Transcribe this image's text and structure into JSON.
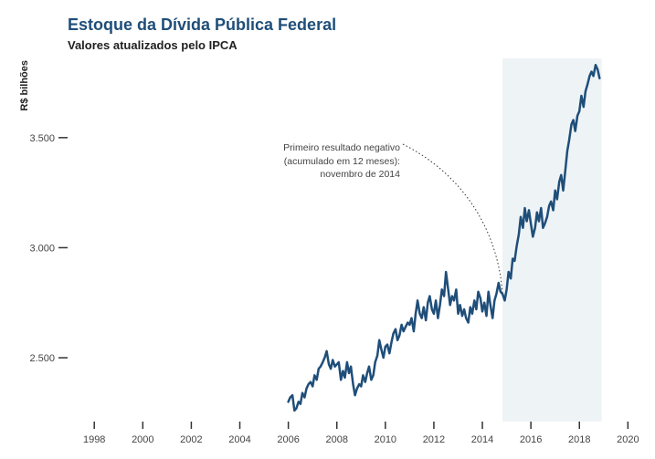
{
  "header": {
    "title": "Estoque da Dívida Pública Federal",
    "subtitle": "Valores atualizados pelo IPCA"
  },
  "colors": {
    "line": "#1f4e79",
    "title": "#1f4e79",
    "highlight": "#eef3f6",
    "ticks": "#333333"
  },
  "chart_data": {
    "type": "line",
    "title": "Estoque da Dívida Pública Federal",
    "subtitle": "Valores atualizados pelo IPCA",
    "ylabel": "R$ bilhões",
    "xlabel": "",
    "xlim": [
      1996.9,
      2020.1
    ],
    "ylim": [
      2210,
      3860
    ],
    "x_ticks": [
      1998,
      2000,
      2002,
      2004,
      2006,
      2008,
      2010,
      2012,
      2014,
      2016,
      2018,
      2020
    ],
    "x_tick_labels": [
      "1998",
      "2000",
      "2002",
      "2004",
      "2006",
      "2008",
      "2010",
      "2012",
      "2014",
      "2016",
      "2018",
      "2020"
    ],
    "y_ticks": [
      2500,
      3000,
      3500
    ],
    "y_tick_labels": [
      "2.500",
      "3.000",
      "3.500"
    ],
    "grid": false,
    "shaded_region": {
      "x_start": 2014.83,
      "x_end": 2018.92
    },
    "annotation": {
      "lines": [
        "Primeiro resultado negativo",
        "(acumulado em 12 meses):",
        "novembro de 2014"
      ],
      "target": {
        "x": 2014.83,
        "y": 2790
      }
    },
    "series": [
      {
        "name": "",
        "x": [
          2006.0,
          2006.08,
          2006.17,
          2006.25,
          2006.33,
          2006.42,
          2006.5,
          2006.58,
          2006.67,
          2006.75,
          2006.83,
          2006.92,
          2007.0,
          2007.08,
          2007.17,
          2007.25,
          2007.33,
          2007.42,
          2007.5,
          2007.58,
          2007.67,
          2007.75,
          2007.83,
          2007.92,
          2008.0,
          2008.08,
          2008.17,
          2008.25,
          2008.33,
          2008.42,
          2008.5,
          2008.58,
          2008.67,
          2008.75,
          2008.83,
          2008.92,
          2009.0,
          2009.08,
          2009.17,
          2009.25,
          2009.33,
          2009.42,
          2009.5,
          2009.58,
          2009.67,
          2009.75,
          2009.83,
          2009.92,
          2010.0,
          2010.08,
          2010.17,
          2010.25,
          2010.33,
          2010.42,
          2010.5,
          2010.58,
          2010.67,
          2010.75,
          2010.83,
          2010.92,
          2011.0,
          2011.08,
          2011.17,
          2011.25,
          2011.33,
          2011.42,
          2011.5,
          2011.58,
          2011.67,
          2011.75,
          2011.83,
          2011.92,
          2012.0,
          2012.08,
          2012.17,
          2012.25,
          2012.33,
          2012.42,
          2012.5,
          2012.58,
          2012.67,
          2012.75,
          2012.83,
          2012.92,
          2013.0,
          2013.08,
          2013.17,
          2013.25,
          2013.33,
          2013.42,
          2013.5,
          2013.58,
          2013.67,
          2013.75,
          2013.83,
          2013.92,
          2014.0,
          2014.08,
          2014.17,
          2014.25,
          2014.33,
          2014.42,
          2014.5,
          2014.58,
          2014.67,
          2014.75,
          2014.83,
          2014.92,
          2015.0,
          2015.08,
          2015.17,
          2015.25,
          2015.33,
          2015.42,
          2015.5,
          2015.58,
          2015.67,
          2015.75,
          2015.83,
          2015.92,
          2016.0,
          2016.08,
          2016.17,
          2016.25,
          2016.33,
          2016.42,
          2016.5,
          2016.58,
          2016.67,
          2016.75,
          2016.83,
          2016.92,
          2017.0,
          2017.08,
          2017.17,
          2017.25,
          2017.33,
          2017.42,
          2017.5,
          2017.58,
          2017.67,
          2017.75,
          2017.83,
          2017.92,
          2018.0,
          2018.08,
          2018.17,
          2018.25,
          2018.33,
          2018.42,
          2018.5,
          2018.58,
          2018.67,
          2018.75,
          2018.83
        ],
        "values": [
          2300,
          2320,
          2330,
          2260,
          2270,
          2300,
          2290,
          2340,
          2320,
          2360,
          2380,
          2390,
          2370,
          2420,
          2400,
          2450,
          2460,
          2480,
          2500,
          2530,
          2470,
          2450,
          2490,
          2460,
          2470,
          2480,
          2400,
          2440,
          2410,
          2480,
          2430,
          2460,
          2380,
          2330,
          2360,
          2380,
          2370,
          2420,
          2390,
          2430,
          2460,
          2400,
          2420,
          2480,
          2510,
          2580,
          2540,
          2500,
          2550,
          2560,
          2520,
          2570,
          2610,
          2630,
          2580,
          2600,
          2650,
          2620,
          2640,
          2660,
          2650,
          2680,
          2620,
          2700,
          2760,
          2700,
          2680,
          2730,
          2670,
          2750,
          2780,
          2720,
          2700,
          2760,
          2680,
          2740,
          2810,
          2780,
          2890,
          2820,
          2740,
          2780,
          2760,
          2810,
          2700,
          2740,
          2690,
          2720,
          2680,
          2660,
          2730,
          2700,
          2760,
          2720,
          2800,
          2770,
          2710,
          2750,
          2690,
          2800,
          2740,
          2680,
          2760,
          2790,
          2840,
          2800,
          2790,
          2760,
          2810,
          2890,
          2860,
          2950,
          2940,
          3010,
          3060,
          3140,
          3090,
          3180,
          3120,
          3170,
          3110,
          3050,
          3090,
          3160,
          3120,
          3180,
          3090,
          3110,
          3140,
          3190,
          3210,
          3170,
          3260,
          3220,
          3300,
          3330,
          3260,
          3350,
          3440,
          3490,
          3560,
          3580,
          3530,
          3600,
          3620,
          3690,
          3640,
          3710,
          3740,
          3780,
          3800,
          3780,
          3830,
          3810,
          3770
        ]
      }
    ]
  }
}
